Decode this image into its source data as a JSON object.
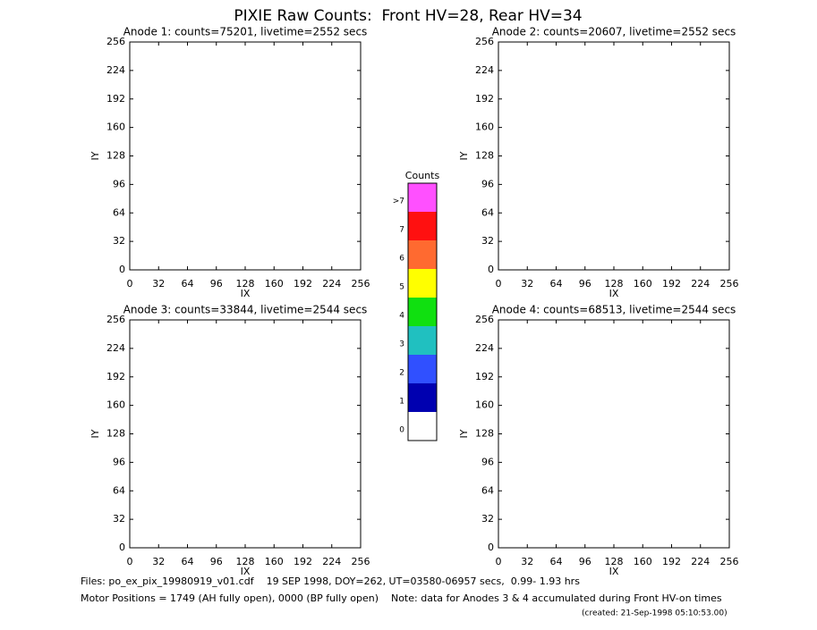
{
  "title": "PIXIE Raw Counts:  Front HV=28, Rear HV=34",
  "chart_data": [
    {
      "type": "heatmap",
      "title": "Anode 1: counts=75201, livetime=2552 secs",
      "xlabel": "IX",
      "ylabel": "IY",
      "xlim": [
        0,
        256
      ],
      "ylim": [
        0,
        256
      ],
      "xticks": [
        0,
        32,
        64,
        96,
        128,
        160,
        192,
        224,
        256
      ],
      "yticks": [
        0,
        32,
        64,
        96,
        128,
        160,
        192,
        224,
        256
      ]
    },
    {
      "type": "heatmap",
      "title": "Anode 2: counts=20607, livetime=2552 secs",
      "xlabel": "IX",
      "ylabel": "IY",
      "xlim": [
        0,
        256
      ],
      "ylim": [
        0,
        256
      ],
      "xticks": [
        0,
        32,
        64,
        96,
        128,
        160,
        192,
        224,
        256
      ],
      "yticks": [
        0,
        32,
        64,
        96,
        128,
        160,
        192,
        224,
        256
      ]
    },
    {
      "type": "heatmap",
      "title": "Anode 3: counts=33844, livetime=2544 secs",
      "xlabel": "IX",
      "ylabel": "IY",
      "xlim": [
        0,
        256
      ],
      "ylim": [
        0,
        256
      ],
      "xticks": [
        0,
        32,
        64,
        96,
        128,
        160,
        192,
        224,
        256
      ],
      "yticks": [
        0,
        32,
        64,
        96,
        128,
        160,
        192,
        224,
        256
      ]
    },
    {
      "type": "heatmap",
      "title": "Anode 4: counts=68513, livetime=2544 secs",
      "xlabel": "IX",
      "ylabel": "IY",
      "xlim": [
        0,
        256
      ],
      "ylim": [
        0,
        256
      ],
      "xticks": [
        0,
        32,
        64,
        96,
        128,
        160,
        192,
        224,
        256
      ],
      "yticks": [
        0,
        32,
        64,
        96,
        128,
        160,
        192,
        224,
        256
      ]
    }
  ],
  "colorbar": {
    "title": "Counts",
    "levels": [
      0,
      1,
      2,
      3,
      4,
      5,
      6,
      7,
      ">7"
    ],
    "colors": [
      "#ffffff",
      "#0000b0",
      "#3050ff",
      "#20c0c0",
      "#10e010",
      "#ffff00",
      "#ff6a30",
      "#ff1010",
      "#ff50ff"
    ]
  },
  "footer": {
    "files": "Files: po_ex_pix_19980919_v01.cdf    19 SEP 1998, DOY=262, UT=03580-06957 secs,  0.99- 1.93 hrs",
    "motor": "Motor Positions = 1749 (AH fully open), 0000 (BP fully open)    Note: data for Anodes 3 & 4 accumulated during Front HV-on times",
    "created": "(created: 21-Sep-1998 05:10:53.00)"
  }
}
